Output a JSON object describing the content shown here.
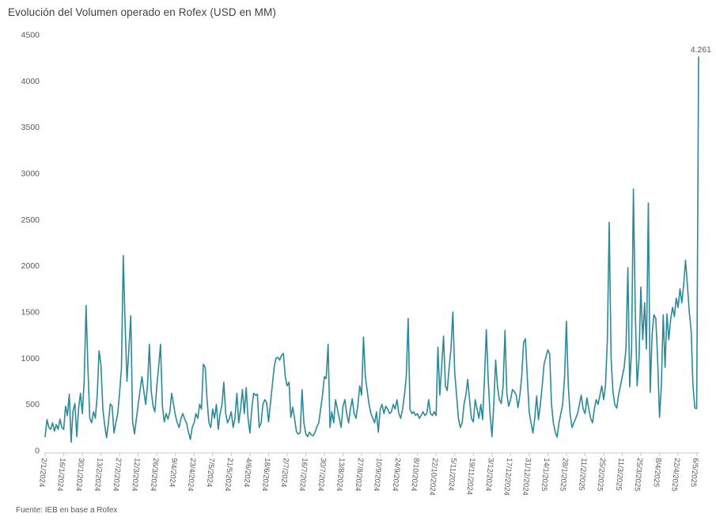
{
  "header": {
    "title": "Evolución del Volumen operado en Rofex (USD en MM)"
  },
  "footer": {
    "source": "Fuente: IEB en base a Rofex"
  },
  "chart_data": {
    "type": "line",
    "title": "Evolución del Volumen operado en Rofex (USD en MM)",
    "xlabel": "",
    "ylabel": "",
    "ylim": [
      0,
      4500
    ],
    "y_tick_step": 500,
    "grid": false,
    "legend": "none",
    "line_color": "#2b8a99",
    "axis_color": "#c9c9c9",
    "label_color": "#595959",
    "title_color": "#404040",
    "tick_interval": 10,
    "x_tick_labels": [
      "2/1/2024",
      "16/1/2024",
      "30/1/2024",
      "13/2/2024",
      "27/2/2024",
      "12/3/2024",
      "26/3/2024",
      "9/4/2024",
      "23/4/2024",
      "7/5/2024",
      "21/5/2024",
      "4/6/2024",
      "18/6/2024",
      "2/7/2024",
      "16/7/2024",
      "30/7/2024",
      "13/8/2024",
      "27/8/2024",
      "10/9/2024",
      "24/9/2024",
      "8/10/2024",
      "22/10/2024",
      "5/11/2024",
      "19/11/2024",
      "3/12/2024",
      "17/12/2024",
      "31/12/2024",
      "14/1/2025",
      "28/1/2025",
      "11/2/2025",
      "25/2/2025",
      "11/3/2025",
      "25/3/2025",
      "8/4/2025",
      "22/4/2025",
      "6/5/2025"
    ],
    "values": [
      150,
      335,
      250,
      230,
      300,
      210,
      280,
      230,
      340,
      250,
      230,
      480,
      380,
      610,
      90,
      430,
      510,
      150,
      460,
      620,
      400,
      760,
      1570,
      900,
      350,
      300,
      420,
      350,
      600,
      1080,
      930,
      450,
      275,
      140,
      300,
      505,
      480,
      190,
      300,
      400,
      620,
      890,
      2110,
      1350,
      750,
      1100,
      1460,
      310,
      180,
      340,
      500,
      650,
      800,
      650,
      500,
      700,
      1150,
      650,
      480,
      420,
      700,
      900,
      1150,
      480,
      310,
      400,
      340,
      420,
      620,
      500,
      380,
      300,
      250,
      350,
      400,
      340,
      300,
      200,
      120,
      250,
      300,
      400,
      350,
      500,
      450,
      935,
      900,
      550,
      300,
      250,
      450,
      350,
      500,
      230,
      400,
      500,
      740,
      400,
      300,
      350,
      420,
      250,
      350,
      620,
      300,
      450,
      660,
      400,
      680,
      350,
      190,
      450,
      620,
      600,
      610,
      250,
      300,
      500,
      550,
      520,
      310,
      500,
      700,
      900,
      1000,
      1010,
      980,
      1030,
      1050,
      800,
      700,
      740,
      360,
      470,
      350,
      205,
      180,
      190,
      660,
      300,
      180,
      150,
      200,
      170,
      160,
      200,
      260,
      300,
      450,
      600,
      800,
      780,
      1150,
      250,
      420,
      300,
      550,
      450,
      350,
      250,
      480,
      550,
      400,
      300,
      450,
      560,
      400,
      350,
      500,
      700,
      600,
      1230,
      800,
      650,
      500,
      400,
      350,
      300,
      420,
      200,
      450,
      500,
      400,
      480,
      450,
      400,
      420,
      500,
      450,
      550,
      400,
      350,
      450,
      600,
      800,
      1430,
      450,
      400,
      420,
      380,
      400,
      350,
      380,
      420,
      380,
      400,
      550,
      400,
      380,
      420,
      380,
      1120,
      600,
      900,
      1240,
      700,
      650,
      900,
      1100,
      1500,
      850,
      600,
      350,
      250,
      300,
      500,
      600,
      770,
      550,
      350,
      310,
      550,
      450,
      350,
      500,
      335,
      790,
      1310,
      760,
      400,
      150,
      500,
      980,
      690,
      550,
      510,
      700,
      1300,
      620,
      480,
      550,
      660,
      640,
      600,
      465,
      600,
      800,
      1170,
      1210,
      790,
      420,
      300,
      190,
      350,
      590,
      335,
      500,
      700,
      935,
      1010,
      1090,
      1050,
      500,
      300,
      200,
      145,
      300,
      400,
      500,
      800,
      1400,
      700,
      400,
      250,
      300,
      350,
      400,
      500,
      600,
      450,
      400,
      570,
      450,
      350,
      300,
      450,
      550,
      500,
      600,
      700,
      550,
      700,
      1200,
      2470,
      1000,
      640,
      500,
      460,
      600,
      700,
      800,
      900,
      1100,
      1980,
      690,
      1100,
      2830,
      1500,
      700,
      1000,
      1770,
      1200,
      1600,
      1100,
      2680,
      630,
      1250,
      1470,
      1430,
      1000,
      360,
      700,
      1470,
      900,
      1480,
      1200,
      1420,
      1550,
      1450,
      1650,
      1550,
      1750,
      1600,
      1800,
      2060,
      1790,
      1500,
      1300,
      700,
      460,
      455,
      4261
    ],
    "annotation": {
      "text": "4.261",
      "value": 4261,
      "point_index": 351
    }
  }
}
